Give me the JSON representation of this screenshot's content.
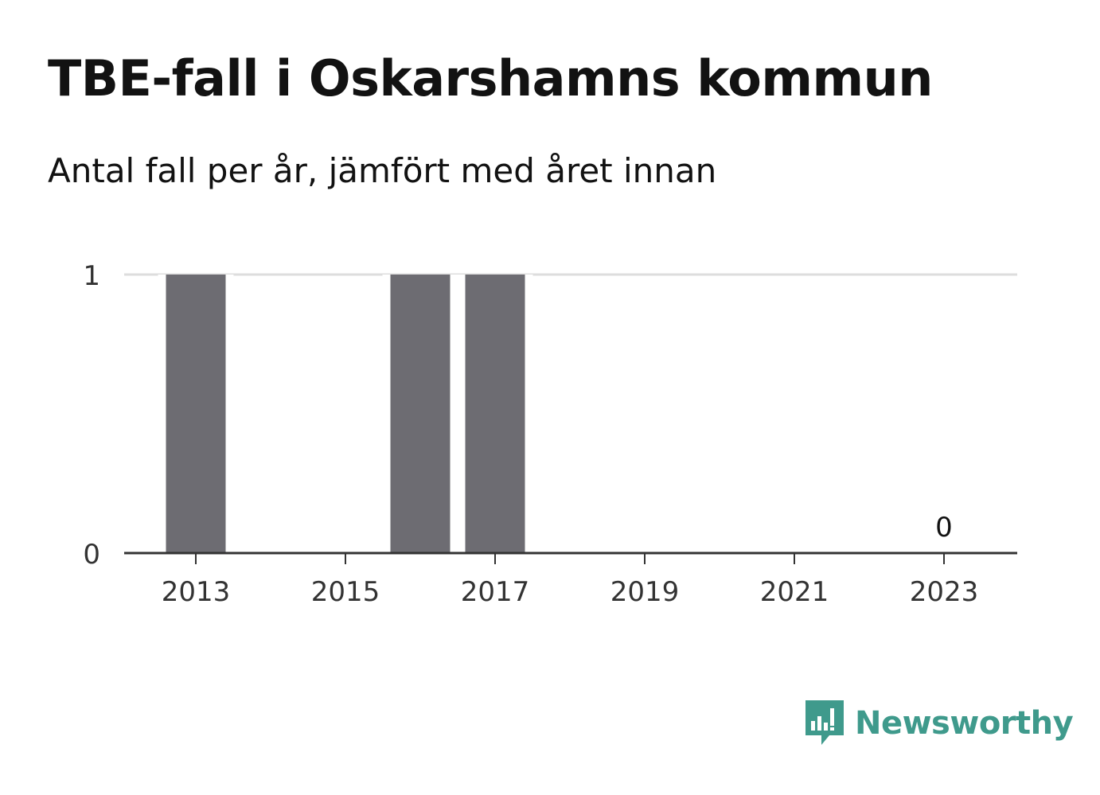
{
  "title": "TBE-fall i Oskarshamns kommun",
  "subtitle": "Antal fall per år, jämfört med året innan",
  "brand": {
    "name": "Newsworthy",
    "color": "#3f9a8c",
    "icon": "newsworthy-logo-icon"
  },
  "colors": {
    "bar": "#6d6c72",
    "grid": "#dddddd",
    "axis": "#333333"
  },
  "chart_data": {
    "type": "bar",
    "x": [
      2013,
      2014,
      2015,
      2016,
      2017,
      2018,
      2019,
      2020,
      2021,
      2022,
      2023
    ],
    "values": [
      1,
      0,
      0,
      1,
      1,
      0,
      0,
      0,
      0,
      0,
      0
    ],
    "x_ticks": [
      "2013",
      "2015",
      "2017",
      "2019",
      "2021",
      "2023"
    ],
    "y_ticks": [
      "0",
      "1"
    ],
    "ylim": [
      0,
      1
    ],
    "data_labels": [
      {
        "x": 2023,
        "label": "0"
      }
    ],
    "grid": true,
    "legend": "none"
  }
}
